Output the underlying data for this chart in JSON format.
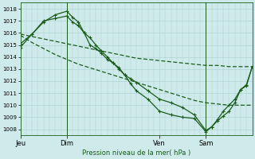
{
  "background_color": "#ceeaea",
  "grid_color": "#aacfcf",
  "line_color": "#1a5c1a",
  "ylabel_text": "Pression niveau de la mer( hPa )",
  "ylim": [
    1007.5,
    1018.5
  ],
  "yticks": [
    1008,
    1009,
    1010,
    1011,
    1012,
    1013,
    1014,
    1015,
    1016,
    1017,
    1018
  ],
  "xtick_labels": [
    "Jeu",
    "Dim",
    "Ven",
    "Sam"
  ],
  "xtick_positions": [
    0,
    8,
    24,
    32
  ],
  "xlim": [
    0,
    40
  ],
  "vlines_x": [
    8,
    32
  ],
  "series1_x": [
    0,
    2,
    4,
    6,
    8,
    10,
    12,
    14,
    16,
    18,
    20,
    22,
    24,
    26,
    28,
    30,
    32,
    34,
    36,
    38,
    40
  ],
  "series1_y": [
    1015.9,
    1015.7,
    1015.5,
    1015.3,
    1015.1,
    1014.9,
    1014.7,
    1014.5,
    1014.3,
    1014.1,
    1013.9,
    1013.8,
    1013.7,
    1013.6,
    1013.5,
    1013.4,
    1013.3,
    1013.3,
    1013.2,
    1013.2,
    1013.2
  ],
  "series2_x": [
    0,
    2,
    4,
    6,
    8,
    10,
    12,
    14,
    16,
    18,
    20,
    22,
    24,
    26,
    28,
    30,
    32,
    34,
    36,
    38,
    40
  ],
  "series2_y": [
    1015.8,
    1015.2,
    1014.7,
    1014.2,
    1013.8,
    1013.4,
    1013.1,
    1012.8,
    1012.5,
    1012.2,
    1011.9,
    1011.6,
    1011.3,
    1011.0,
    1010.7,
    1010.4,
    1010.2,
    1010.1,
    1010.0,
    1010.0,
    1010.0
  ],
  "series3_x": [
    0,
    2,
    4,
    6,
    8,
    9,
    10,
    11,
    12,
    13,
    14,
    15,
    16,
    17,
    18,
    19,
    20,
    22,
    24,
    26,
    28,
    30,
    32,
    33,
    34,
    35,
    36,
    37,
    38,
    39,
    40
  ],
  "series3_y": [
    1014.8,
    1015.9,
    1017.0,
    1017.2,
    1017.4,
    1016.9,
    1016.6,
    1016.0,
    1015.0,
    1014.7,
    1014.3,
    1013.8,
    1013.5,
    1013.1,
    1012.5,
    1012.2,
    1011.9,
    1011.2,
    1010.5,
    1010.2,
    1009.8,
    1009.2,
    1007.9,
    1008.2,
    1008.8,
    1009.5,
    1010.0,
    1010.5,
    1011.3,
    1011.7,
    1013.2
  ],
  "series4_x": [
    0,
    2,
    4,
    6,
    8,
    9,
    10,
    11,
    12,
    13,
    14,
    15,
    16,
    17,
    18,
    19,
    20,
    22,
    24,
    26,
    28,
    30,
    32,
    33,
    34,
    35,
    36,
    37,
    38,
    39,
    40
  ],
  "series4_y": [
    1015.1,
    1015.9,
    1016.9,
    1017.5,
    1017.8,
    1017.3,
    1016.9,
    1016.0,
    1015.6,
    1015.0,
    1014.5,
    1014.0,
    1013.5,
    1013.0,
    1012.5,
    1011.8,
    1011.2,
    1010.5,
    1009.5,
    1009.2,
    1009.0,
    1008.9,
    1007.8,
    1008.2,
    1008.7,
    1009.1,
    1009.5,
    1010.2,
    1011.3,
    1011.6,
    1013.2
  ],
  "marker_size": 2.5,
  "linewidth": 0.9
}
